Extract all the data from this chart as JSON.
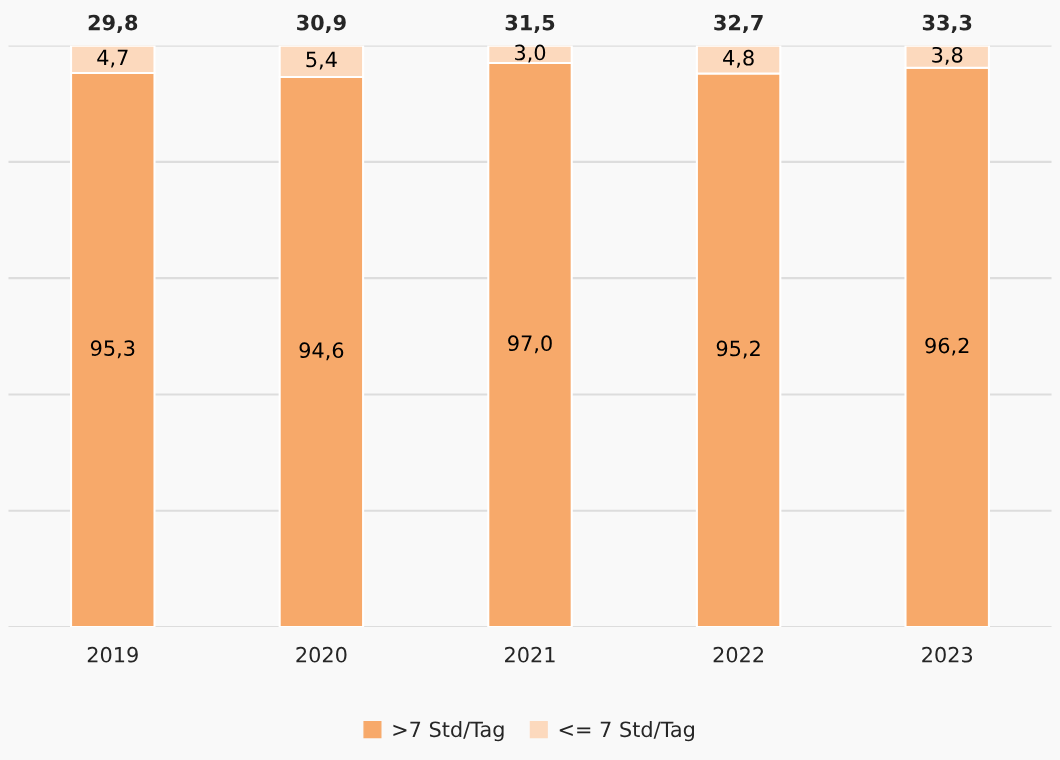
{
  "chart_data": {
    "type": "bar",
    "stacked": true,
    "categories": [
      "2019",
      "2020",
      "2021",
      "2022",
      "2023"
    ],
    "series": [
      {
        "name": ">7 Std/Tag",
        "color": "#f7a96a",
        "values": [
          95.3,
          94.6,
          97.0,
          95.2,
          96.2
        ],
        "value_labels": [
          "95,3",
          "94,6",
          "97,0",
          "95,2",
          "96,2"
        ]
      },
      {
        "name": "<= 7 Std/Tag",
        "color": "#fcd9bd",
        "values": [
          4.7,
          5.4,
          3.0,
          4.8,
          3.8
        ],
        "value_labels": [
          "4,7",
          "5,4",
          "3,0",
          "4,8",
          "3,8"
        ]
      }
    ],
    "annotations": [
      {
        "text": "29,8",
        "x": "2019",
        "y": 100
      },
      {
        "text": "30,9",
        "x": "2020",
        "y": 100
      },
      {
        "text": "31,5",
        "x": "2021",
        "y": 100
      },
      {
        "text": "32,7",
        "x": "2022",
        "y": 100
      },
      {
        "text": "33,3",
        "x": "2023",
        "y": 100
      }
    ],
    "ylim": [
      0,
      100
    ],
    "yticks": [
      {
        "value": 0,
        "label": null
      },
      {
        "value": 20,
        "label": null
      },
      {
        "value": 40,
        "label": null
      },
      {
        "value": 60,
        "label": null
      },
      {
        "value": 80,
        "label": null
      },
      {
        "value": 100,
        "label": null
      }
    ],
    "grid": "y",
    "legend": "bottom",
    "tick_labels": "x"
  }
}
